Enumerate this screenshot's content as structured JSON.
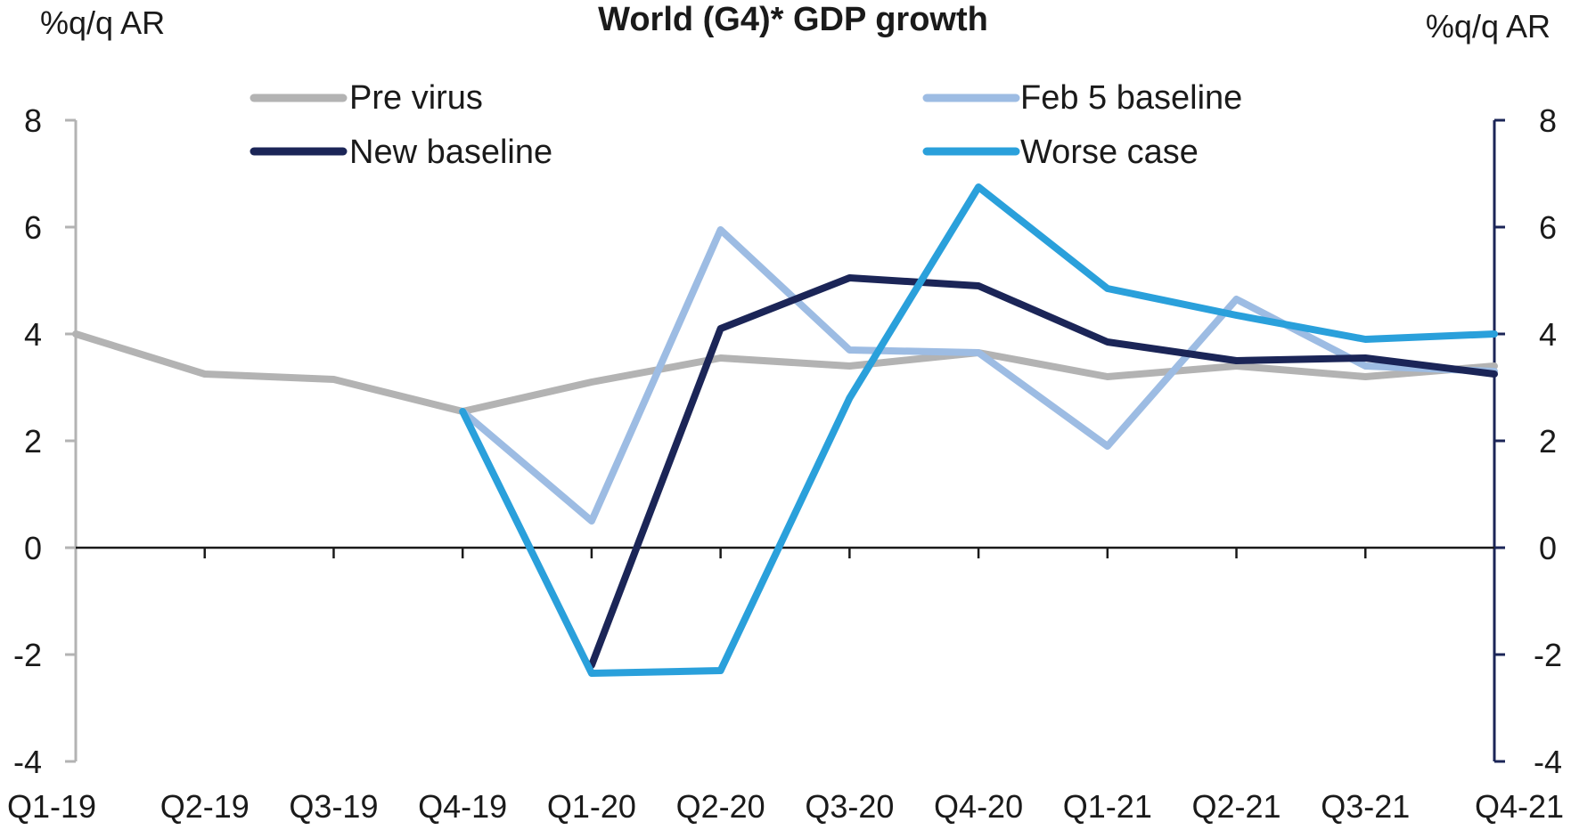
{
  "chart_data": {
    "type": "line",
    "title": "World (G4)* GDP growth",
    "ylabel_left": "%q/q AR",
    "ylabel_right": "%q/q AR",
    "ylim": [
      -4,
      8
    ],
    "yticks": [
      8,
      6,
      4,
      2,
      0,
      -2,
      -4
    ],
    "yticks_right": [
      8,
      6,
      4,
      2,
      0,
      -2,
      -4
    ],
    "categories": [
      "Q1-19",
      "Q2-19",
      "Q3-19",
      "Q4-19",
      "Q1-20",
      "Q2-20",
      "Q3-20",
      "Q4-20",
      "Q1-21",
      "Q2-21",
      "Q3-21",
      "Q4-21"
    ],
    "legend_position": "top",
    "series": [
      {
        "name": "Pre virus",
        "color": "#b3b3b3",
        "values": [
          4.0,
          3.25,
          3.15,
          2.55,
          3.1,
          3.55,
          3.4,
          3.65,
          3.2,
          3.4,
          3.2,
          3.4
        ]
      },
      {
        "name": "Feb 5 baseline",
        "color": "#9dbce3",
        "values": [
          null,
          null,
          null,
          2.55,
          0.5,
          5.95,
          3.7,
          3.65,
          1.9,
          4.65,
          3.4,
          3.3
        ]
      },
      {
        "name": "New baseline",
        "color": "#1b2557",
        "values": [
          null,
          null,
          null,
          null,
          -2.2,
          4.1,
          5.05,
          4.9,
          3.85,
          3.5,
          3.55,
          3.25
        ]
      },
      {
        "name": "Worse case",
        "color": "#2aa0db",
        "values": [
          null,
          null,
          null,
          2.55,
          -2.35,
          -2.3,
          2.8,
          6.75,
          4.85,
          4.35,
          3.9,
          4.0
        ]
      }
    ],
    "axis_colors": {
      "left": "#b3b3b3",
      "right": "#1b2557",
      "zero_line": "#1a1a1a"
    }
  }
}
